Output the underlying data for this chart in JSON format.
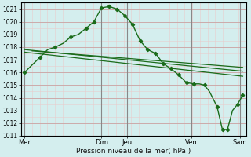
{
  "background_color": "#d4eeee",
  "grid_color_minor": "#e8cccc",
  "grid_color_major": "#ccaaaa",
  "line_color": "#1a6b1a",
  "ylim": [
    1011,
    1021.5
  ],
  "yticks": [
    1011,
    1012,
    1013,
    1014,
    1015,
    1016,
    1017,
    1018,
    1019,
    1020,
    1021
  ],
  "xlabel": "Pression niveau de la mer( hPa )",
  "xlim": [
    -0.15,
    9.6
  ],
  "vline_positions": [
    0,
    3.33,
    4.44,
    7.22,
    9.33
  ],
  "xtick_positions": [
    0,
    3.33,
    4.44,
    7.22,
    9.33
  ],
  "xtick_labels": [
    "Mer",
    "Dim",
    "Jeu",
    "Ven",
    "Sam"
  ],
  "series1_x": [
    0.0,
    0.33,
    0.67,
    1.0,
    1.33,
    1.67,
    2.0,
    2.33,
    2.67,
    3.0,
    3.33,
    3.67,
    4.0,
    4.33,
    4.67,
    5.0,
    5.33,
    5.67,
    6.0,
    6.33,
    6.67,
    7.0,
    7.33,
    7.56,
    7.78,
    8.0,
    8.33,
    8.56,
    8.78,
    9.0,
    9.22,
    9.44
  ],
  "series1_y": [
    1016.0,
    1016.6,
    1017.2,
    1017.8,
    1018.0,
    1018.3,
    1018.8,
    1019.0,
    1019.5,
    1020.0,
    1021.1,
    1021.2,
    1021.0,
    1020.5,
    1019.8,
    1018.5,
    1017.8,
    1017.5,
    1016.7,
    1016.3,
    1015.8,
    1015.2,
    1015.1,
    1015.1,
    1015.0,
    1014.5,
    1013.3,
    1011.5,
    1011.5,
    1013.0,
    1013.5,
    1014.2
  ],
  "series1_markers_x": [
    0.0,
    0.67,
    1.33,
    2.0,
    2.67,
    3.0,
    3.33,
    3.67,
    4.0,
    4.33,
    4.67,
    5.0,
    5.33,
    5.67,
    6.0,
    6.33,
    6.67,
    7.0,
    7.33,
    7.78,
    8.33,
    8.56,
    8.78,
    9.22,
    9.44
  ],
  "series1_markers_y": [
    1016.0,
    1017.2,
    1018.0,
    1018.8,
    1019.5,
    1020.0,
    1021.1,
    1021.2,
    1021.0,
    1020.5,
    1019.8,
    1018.5,
    1017.8,
    1017.5,
    1016.7,
    1016.3,
    1015.8,
    1015.2,
    1015.1,
    1015.0,
    1013.3,
    1011.5,
    1011.5,
    1013.5,
    1014.2
  ],
  "series2_x": [
    0.0,
    9.44
  ],
  "series2_y": [
    1017.6,
    1015.7
  ],
  "series3_x": [
    0.0,
    9.44
  ],
  "series3_y": [
    1017.8,
    1016.1
  ],
  "series4_x": [
    0.33,
    9.44
  ],
  "series4_y": [
    1017.7,
    1016.4
  ]
}
